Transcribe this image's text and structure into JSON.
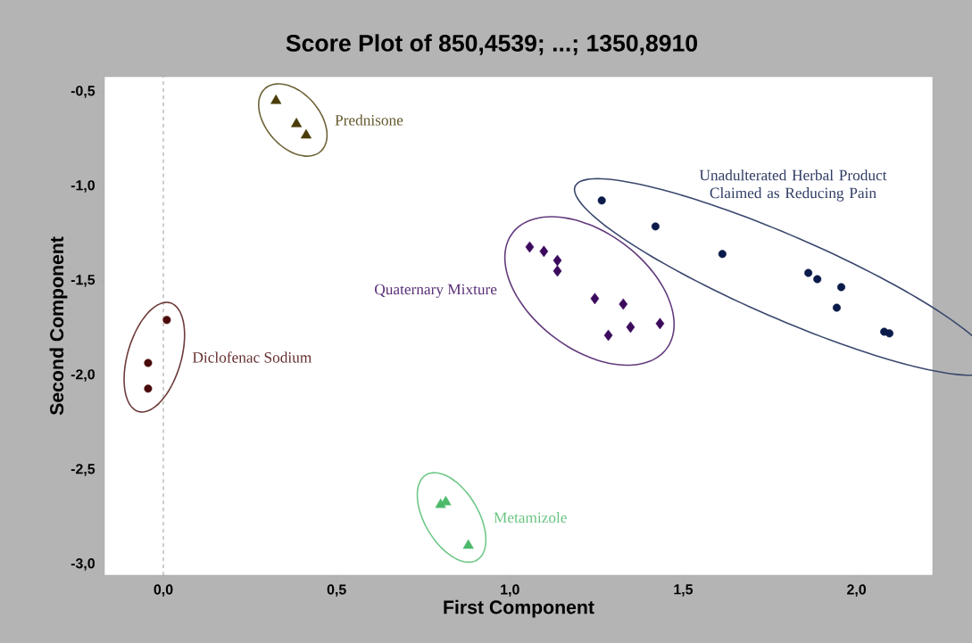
{
  "chart_data": {
    "type": "scatter",
    "title": "Score Plot of 850,4539; ...; 1350,8910",
    "xlabel": "First Component",
    "ylabel": "Second Component",
    "xlim": [
      -0.17,
      2.22
    ],
    "ylim": [
      -3.057,
      -0.42
    ],
    "xticks": [
      {
        "value": 0,
        "label": "0,0"
      },
      {
        "value": 0.5,
        "label": "0,5"
      },
      {
        "value": 1,
        "label": "1,0"
      },
      {
        "value": 1.5,
        "label": "1,5"
      },
      {
        "value": 2,
        "label": "2,0"
      }
    ],
    "yticks": [
      {
        "value": -0.5,
        "label": "-0,5"
      },
      {
        "value": -1,
        "label": "-1,0"
      },
      {
        "value": -1.5,
        "label": "-1,5"
      },
      {
        "value": -2,
        "label": "-2,0"
      },
      {
        "value": -2.5,
        "label": "-2,5"
      },
      {
        "value": -3,
        "label": "-3,0"
      }
    ],
    "ref_lines": [
      {
        "axis": "x",
        "value": 0,
        "color": "#808080",
        "line_style": "dashed"
      }
    ],
    "series": [
      {
        "name": "Prednisone",
        "color": "#4a3c08",
        "marker": "triangle",
        "x": [
          0.325,
          0.384,
          0.412
        ],
        "values": [
          -0.547,
          -0.67,
          -0.73
        ]
      },
      {
        "name": "Diclofenac Sodium",
        "color": "#4a0a0a",
        "marker": "circle",
        "x": [
          0.01,
          -0.044,
          -0.044
        ],
        "values": [
          -1.707,
          -1.934,
          -2.07
        ]
      },
      {
        "name": "Metamizole",
        "color": "#4cba6a",
        "marker": "triangle",
        "x": [
          0.8,
          0.815,
          0.88
        ],
        "values": [
          -2.684,
          -2.67,
          -2.9
        ]
      },
      {
        "name": "Quaternary Mixture",
        "color": "#3c0a5c",
        "marker": "diamond",
        "x": [
          1.057,
          1.098,
          1.137,
          1.137,
          1.245,
          1.327,
          1.284,
          1.348,
          1.433
        ],
        "values": [
          -1.321,
          -1.344,
          -1.392,
          -1.448,
          -1.594,
          -1.623,
          -1.788,
          -1.745,
          -1.726
        ]
      },
      {
        "name": "Unadulterated Herbal Product Claimed as Reducing Pain",
        "color": "#0a1a4a",
        "marker": "circle",
        "x": [
          1.265,
          1.42,
          1.613,
          1.861,
          1.887,
          1.956,
          1.943,
          2.08,
          2.095
        ],
        "values": [
          -1.075,
          -1.212,
          -1.358,
          -1.458,
          -1.491,
          -1.533,
          -1.642,
          -1.769,
          -1.778
        ]
      }
    ]
  }
}
